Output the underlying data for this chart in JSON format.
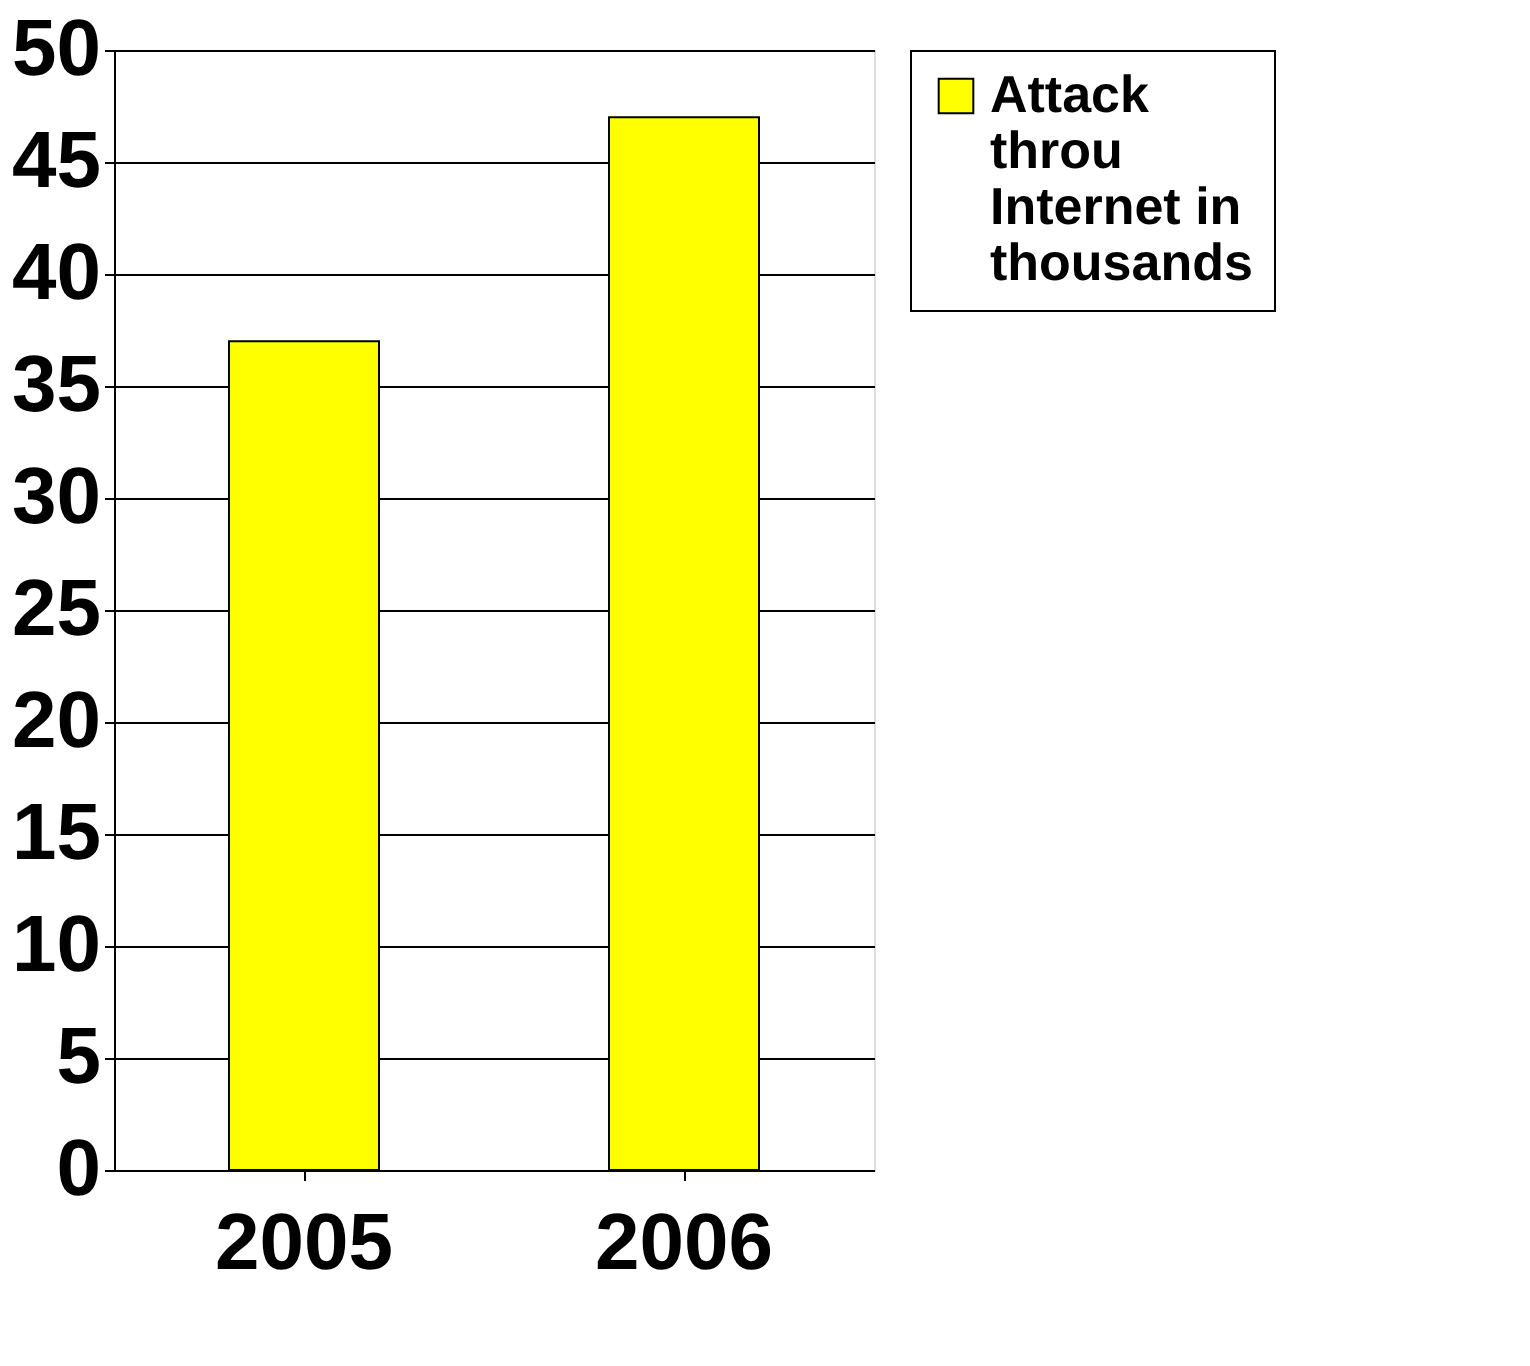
{
  "chart_data": {
    "type": "bar",
    "categories": [
      "2005",
      "2006"
    ],
    "series": [
      {
        "name": "Attack throu Internet in thousands",
        "color": "#ffff00",
        "values": [
          37,
          47
        ]
      }
    ],
    "ylim": [
      0,
      50
    ],
    "yticks": [
      0,
      5,
      10,
      15,
      20,
      25,
      30,
      35,
      40,
      45,
      50
    ],
    "grid": "y",
    "legend": "right"
  }
}
